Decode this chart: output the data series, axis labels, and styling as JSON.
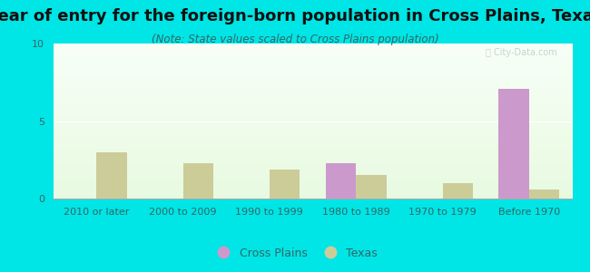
{
  "title": "Year of entry for the foreign-born population in Cross Plains, Texas",
  "subtitle": "(Note: State values scaled to Cross Plains population)",
  "categories": [
    "2010 or later",
    "2000 to 2009",
    "1990 to 1999",
    "1980 to 1989",
    "1970 to 1979",
    "Before 1970"
  ],
  "cross_plains_values": [
    0,
    0,
    0,
    2.3,
    0,
    7.1
  ],
  "texas_values": [
    3.0,
    2.3,
    1.9,
    1.5,
    1.0,
    0.6
  ],
  "cross_plains_color": "#cc99cc",
  "texas_color": "#cccc99",
  "background_color": "#00e5e5",
  "plot_bg_gradient_top": "#e8f5e2",
  "plot_bg_gradient_bottom": "#f8fff8",
  "ylim": [
    0,
    10
  ],
  "yticks": [
    0,
    5,
    10
  ],
  "bar_width": 0.35,
  "title_fontsize": 13,
  "subtitle_fontsize": 8.5,
  "tick_fontsize": 8,
  "legend_fontsize": 9,
  "title_color": "#111111",
  "subtitle_color": "#336666",
  "tick_color": "#336666",
  "watermark_color": "#bbcccc"
}
